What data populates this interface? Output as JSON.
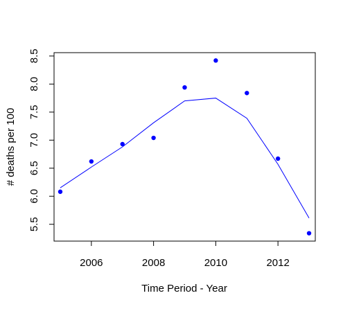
{
  "chart_data": {
    "type": "scatter",
    "title": "",
    "xlabel": "Time Period - Year",
    "ylabel": "# deaths per 100",
    "xlim": [
      2004.8,
      2013.2
    ],
    "ylim": [
      5.2,
      8.56
    ],
    "xticks": [
      2006,
      2008,
      2010,
      2012
    ],
    "yticks": [
      5.5,
      6.0,
      6.5,
      7.0,
      7.5,
      8.0,
      8.5
    ],
    "xtick_labels": [
      "2006",
      "2008",
      "2010",
      "2012"
    ],
    "ytick_labels": [
      "5.5",
      "6.0",
      "6.5",
      "7.0",
      "7.5",
      "8.0",
      "8.5"
    ],
    "grid": false,
    "legend": "none",
    "series": [
      {
        "kind": "points",
        "color": "#0000FF",
        "x": [
          2005,
          2006,
          2007,
          2008,
          2009,
          2010,
          2011,
          2012,
          2013
        ],
        "y": [
          6.08,
          6.62,
          6.93,
          7.04,
          7.94,
          8.42,
          7.84,
          6.67,
          5.34
        ]
      },
      {
        "kind": "line",
        "color": "#0000FF",
        "x": [
          2005,
          2006,
          2007,
          2008,
          2009,
          2010,
          2011,
          2012,
          2013
        ],
        "y": [
          6.15,
          6.52,
          6.88,
          7.31,
          7.7,
          7.75,
          7.39,
          6.57,
          5.61
        ]
      }
    ]
  }
}
